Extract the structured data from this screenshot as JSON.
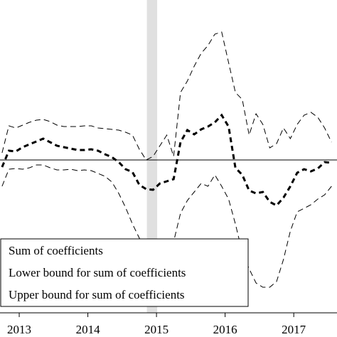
{
  "chart_data": {
    "type": "line",
    "x": [
      2012.75,
      2012.85,
      2012.95,
      2013.05,
      2013.15,
      2013.25,
      2013.35,
      2013.45,
      2013.55,
      2013.65,
      2013.75,
      2013.85,
      2013.95,
      2014.05,
      2014.15,
      2014.25,
      2014.35,
      2014.45,
      2014.55,
      2014.65,
      2014.75,
      2014.85,
      2014.95,
      2015.05,
      2015.15,
      2015.25,
      2015.35,
      2015.45,
      2015.55,
      2015.65,
      2015.75,
      2015.85,
      2015.95,
      2016.05,
      2016.15,
      2016.25,
      2016.35,
      2016.45,
      2016.55,
      2016.65,
      2016.75,
      2016.85,
      2016.95,
      2017.05,
      2017.15,
      2017.25,
      2017.35,
      2017.45,
      2017.55
    ],
    "series": [
      {
        "name": "Sum of coefficients",
        "color": "#000000",
        "width": 3,
        "dash": "7,5",
        "values": [
          -0.1,
          0.13,
          0.12,
          0.18,
          0.22,
          0.26,
          0.3,
          0.25,
          0.2,
          0.18,
          0.16,
          0.14,
          0.14,
          0.15,
          0.13,
          0.08,
          0.04,
          -0.03,
          -0.13,
          -0.17,
          -0.35,
          -0.41,
          -0.42,
          -0.33,
          -0.3,
          -0.27,
          0.25,
          0.42,
          0.36,
          0.43,
          0.47,
          0.53,
          0.63,
          0.47,
          -0.11,
          -0.21,
          -0.43,
          -0.47,
          -0.45,
          -0.59,
          -0.64,
          -0.53,
          -0.37,
          -0.18,
          -0.13,
          -0.16,
          -0.12,
          -0.03,
          -0.04
        ]
      },
      {
        "name": "Lower bound for sum of coefficients",
        "color": "#000000",
        "width": 1,
        "dash": "8,5",
        "values": [
          -0.37,
          -0.13,
          -0.12,
          -0.13,
          -0.11,
          -0.07,
          -0.07,
          -0.11,
          -0.14,
          -0.14,
          -0.13,
          -0.15,
          -0.14,
          -0.15,
          -0.19,
          -0.23,
          -0.31,
          -0.47,
          -0.67,
          -0.9,
          -1.1,
          -1.3,
          -1.4,
          -1.4,
          -1.35,
          -1.15,
          -0.75,
          -0.57,
          -0.45,
          -0.33,
          -0.37,
          -0.21,
          -0.37,
          -0.55,
          -0.9,
          -1.3,
          -1.53,
          -1.73,
          -1.79,
          -1.79,
          -1.71,
          -1.4,
          -1.0,
          -0.73,
          -0.68,
          -0.63,
          -0.55,
          -0.49,
          -0.37
        ]
      },
      {
        "name": "Upper bound for sum of coefficients",
        "color": "#000000",
        "width": 1,
        "dash": "8,5",
        "values": [
          0.1,
          0.48,
          0.45,
          0.49,
          0.53,
          0.56,
          0.57,
          0.54,
          0.49,
          0.47,
          0.47,
          0.47,
          0.48,
          0.48,
          0.45,
          0.44,
          0.43,
          0.42,
          0.39,
          0.35,
          0.15,
          0.0,
          0.05,
          0.2,
          0.35,
          0.05,
          0.95,
          1.11,
          1.32,
          1.5,
          1.61,
          1.77,
          1.8,
          1.37,
          0.95,
          0.85,
          0.35,
          0.65,
          0.5,
          0.17,
          0.23,
          0.45,
          0.3,
          0.5,
          0.63,
          0.67,
          0.6,
          0.45,
          0.25
        ]
      }
    ],
    "xlim": [
      2012.72,
      2017.63
    ],
    "xticks": [
      2013,
      2014,
      2015,
      2016,
      2017
    ],
    "ylim": [
      -2.15,
      2.25
    ],
    "hline": 0,
    "shaded_span": [
      2014.86,
      2015.01
    ],
    "shade_color": "#e0e0e0",
    "legend": "lower-left"
  }
}
